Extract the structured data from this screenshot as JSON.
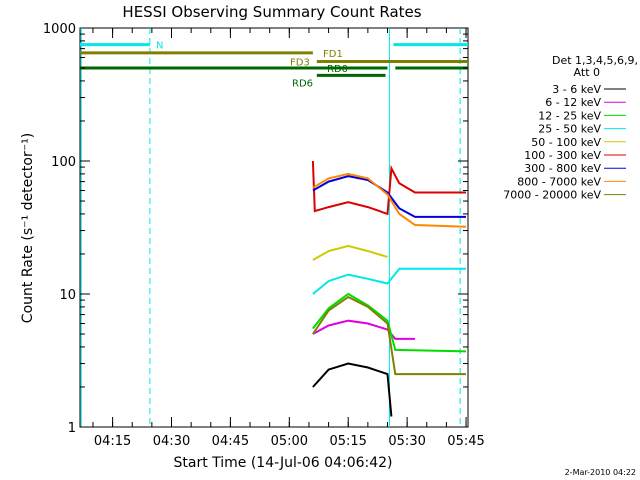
{
  "chart_data": {
    "type": "line",
    "title": "HESSI Observing Summary Count Rates",
    "xlabel": "Start Time (14-Jul-06 04:06:42)",
    "ylabel": "Count Rate (s⁻¹ detector⁻¹)",
    "y_scale": "log",
    "ylim": [
      1,
      1000
    ],
    "xlim": [
      "04:06:42",
      "05:45:30"
    ],
    "x_ticks": [
      "04:15",
      "04:30",
      "04:45",
      "05:00",
      "05:15",
      "05:30",
      "05:45"
    ],
    "y_ticks": [
      "1",
      "10",
      "100",
      "1000"
    ],
    "timestamp": "2-Mar-2010 04:22",
    "legend": {
      "position": "right",
      "header": [
        "Det 1,3,4,5,6,9,",
        "Att 0"
      ],
      "entries": [
        {
          "label": "3 - 6 keV",
          "color": "#000000"
        },
        {
          "label": "6 - 12 keV",
          "color": "#e000e0"
        },
        {
          "label": "12 - 25 keV",
          "color": "#00dd00"
        },
        {
          "label": "25 - 50 keV",
          "color": "#00e8e8"
        },
        {
          "label": "50 - 100 keV",
          "color": "#cccc00"
        },
        {
          "label": "100 - 300 keV",
          "color": "#dd0000"
        },
        {
          "label": "300 - 800 keV",
          "color": "#0000dd"
        },
        {
          "label": "800 - 7000 keV",
          "color": "#ff8800"
        },
        {
          "label": "7000 - 20000 keV",
          "color": "#808000"
        }
      ]
    },
    "flags": [
      {
        "label": "N",
        "color": "#00e8e8",
        "y": 750,
        "segments": [
          [
            "04:06:42",
            "04:24:30"
          ],
          [
            "05:26:30",
            "05:45:30"
          ]
        ]
      },
      {
        "label": "FD1",
        "color": "#808000",
        "y": 650,
        "segments": [
          [
            "04:06:42",
            "05:06:00"
          ]
        ]
      },
      {
        "label": "FD3",
        "color": "#808000",
        "y": 560,
        "segments": [
          [
            "05:07:00",
            "05:45:30"
          ]
        ]
      },
      {
        "label": "RD0",
        "color": "#006600",
        "y": 500,
        "segments": [
          [
            "04:06:42",
            "05:25:00"
          ],
          [
            "05:27:00",
            "05:45:30"
          ]
        ]
      },
      {
        "label": "RD6",
        "color": "#006600",
        "y": 440,
        "segments": [
          [
            "05:07:00",
            "05:24:30"
          ]
        ]
      }
    ],
    "vlines_solid": [
      "04:07:00",
      "05:25:30"
    ],
    "vlines_dashed": [
      "04:24:30",
      "05:43:30"
    ],
    "series": [
      {
        "name": "3 - 6 keV",
        "color": "#000000",
        "points": [
          [
            "05:06:00",
            2.0
          ],
          [
            "05:10",
            2.7
          ],
          [
            "05:15",
            3.0
          ],
          [
            "05:20",
            2.8
          ],
          [
            "05:25",
            2.5
          ],
          [
            "05:26",
            1.2
          ]
        ]
      },
      {
        "name": "6 - 12 keV",
        "color": "#e000e0",
        "points": [
          [
            "05:06:00",
            5.0
          ],
          [
            "05:10",
            5.8
          ],
          [
            "05:15",
            6.3
          ],
          [
            "05:20",
            6.0
          ],
          [
            "05:25",
            5.4
          ],
          [
            "05:27",
            4.6
          ],
          [
            "05:32",
            4.6
          ]
        ]
      },
      {
        "name": "12 - 25 keV",
        "color": "#00dd00",
        "points": [
          [
            "05:06:00",
            5.5
          ],
          [
            "05:10",
            7.8
          ],
          [
            "05:15",
            10.0
          ],
          [
            "05:20",
            8.2
          ],
          [
            "05:25",
            6.3
          ],
          [
            "05:27",
            3.8
          ],
          [
            "05:45",
            3.7
          ]
        ]
      },
      {
        "name": "25 - 50 keV",
        "color": "#00e8e8",
        "points": [
          [
            "05:06:00",
            10.0
          ],
          [
            "05:10",
            12.5
          ],
          [
            "05:15",
            14.0
          ],
          [
            "05:20",
            13.0
          ],
          [
            "05:25",
            12.0
          ],
          [
            "05:28",
            15.5
          ],
          [
            "05:45",
            15.5
          ]
        ]
      },
      {
        "name": "50 - 100 keV",
        "color": "#cccc00",
        "points": [
          [
            "05:06:00",
            18.0
          ],
          [
            "05:10",
            21.0
          ],
          [
            "05:15",
            23.0
          ],
          [
            "05:20",
            21.0
          ],
          [
            "05:25",
            19.0
          ]
        ]
      },
      {
        "name": "100 - 300 keV",
        "color": "#dd0000",
        "points": [
          [
            "05:06:00",
            100.0
          ],
          [
            "05:06:30",
            42.0
          ],
          [
            "05:10",
            45.0
          ],
          [
            "05:15",
            49.0
          ],
          [
            "05:20",
            45.0
          ],
          [
            "05:25",
            40.0
          ],
          [
            "05:26",
            88.0
          ],
          [
            "05:28",
            68.0
          ],
          [
            "05:32",
            58.0
          ],
          [
            "05:45",
            58.0
          ]
        ]
      },
      {
        "name": "300 - 800 keV",
        "color": "#0000dd",
        "points": [
          [
            "05:06:00",
            60.0
          ],
          [
            "05:10",
            70.0
          ],
          [
            "05:15",
            77.0
          ],
          [
            "05:20",
            72.0
          ],
          [
            "05:25",
            58.0
          ],
          [
            "05:28",
            44.0
          ],
          [
            "05:32",
            38.0
          ],
          [
            "05:45",
            38.0
          ]
        ]
      },
      {
        "name": "800 - 7000 keV",
        "color": "#ff8800",
        "points": [
          [
            "05:06:00",
            63.0
          ],
          [
            "05:10",
            74.0
          ],
          [
            "05:15",
            80.0
          ],
          [
            "05:20",
            74.0
          ],
          [
            "05:25",
            56.0
          ],
          [
            "05:28",
            40.0
          ],
          [
            "05:32",
            33.0
          ],
          [
            "05:45",
            32.0
          ]
        ]
      },
      {
        "name": "7000 - 20000 keV",
        "color": "#808000",
        "points": [
          [
            "05:06:00",
            5.0
          ],
          [
            "05:10",
            7.5
          ],
          [
            "05:15",
            9.5
          ],
          [
            "05:20",
            8.0
          ],
          [
            "05:25",
            6.0
          ],
          [
            "05:27",
            2.5
          ],
          [
            "05:45",
            2.5
          ]
        ]
      }
    ]
  }
}
